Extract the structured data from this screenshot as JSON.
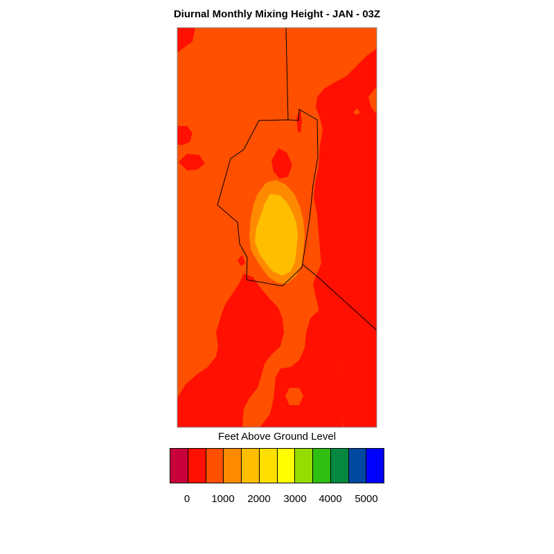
{
  "title": "Diurnal Monthly Mixing Height - JAN - 03Z",
  "legend": {
    "title": "Feet Above Ground Level",
    "ticks": [
      "0",
      "1000",
      "2000",
      "3000",
      "4000",
      "5000"
    ],
    "colors": [
      "#c8003c",
      "#ff1000",
      "#ff5000",
      "#ff8a00",
      "#ffbe00",
      "#ffdf00",
      "#ffff00",
      "#96dc00",
      "#2fbe12",
      "#048840",
      "#0048a0",
      "#0000ff"
    ]
  },
  "map": {
    "field_colors": {
      "below_500": "#ff1000",
      "500_to_1000": "#ff5000",
      "1000_to_1500": "#ff8a00",
      "1500_to_2000": "#ffbe00"
    },
    "boundary_color": "#000000"
  }
}
